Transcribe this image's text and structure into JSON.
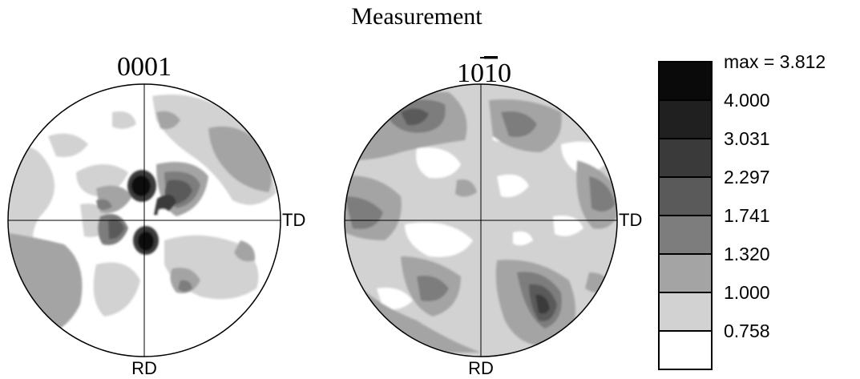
{
  "figure": {
    "title": "Measurement"
  },
  "poles": [
    {
      "id": "basal",
      "label": "0001",
      "axis_right": "TD",
      "axis_bottom": "RD"
    },
    {
      "id": "prismatic",
      "label_parts": [
        "10",
        "1",
        "0"
      ],
      "overlined_part": 1,
      "axis_right": "TD",
      "axis_bottom": "RD"
    }
  ],
  "legend": {
    "max_label": "max = 3.812",
    "levels": [
      "4.000",
      "3.031",
      "2.297",
      "1.741",
      "1.320",
      "1.000",
      "0.758"
    ],
    "level_colors": [
      "#0a0a0a",
      "#202020",
      "#3a3a3a",
      "#5a5a5a",
      "#7d7d7d",
      "#a4a4a4",
      "#d2d2d2",
      "#ffffff"
    ]
  },
  "colors": {
    "outline": "#000000",
    "white": "#ffffff",
    "lightest": "#d2d2d2",
    "light": "#a4a4a4",
    "mid": "#7d7d7d",
    "dark": "#5a5a5a",
    "darker": "#3a3a3a",
    "black": "#0a0a0a"
  }
}
